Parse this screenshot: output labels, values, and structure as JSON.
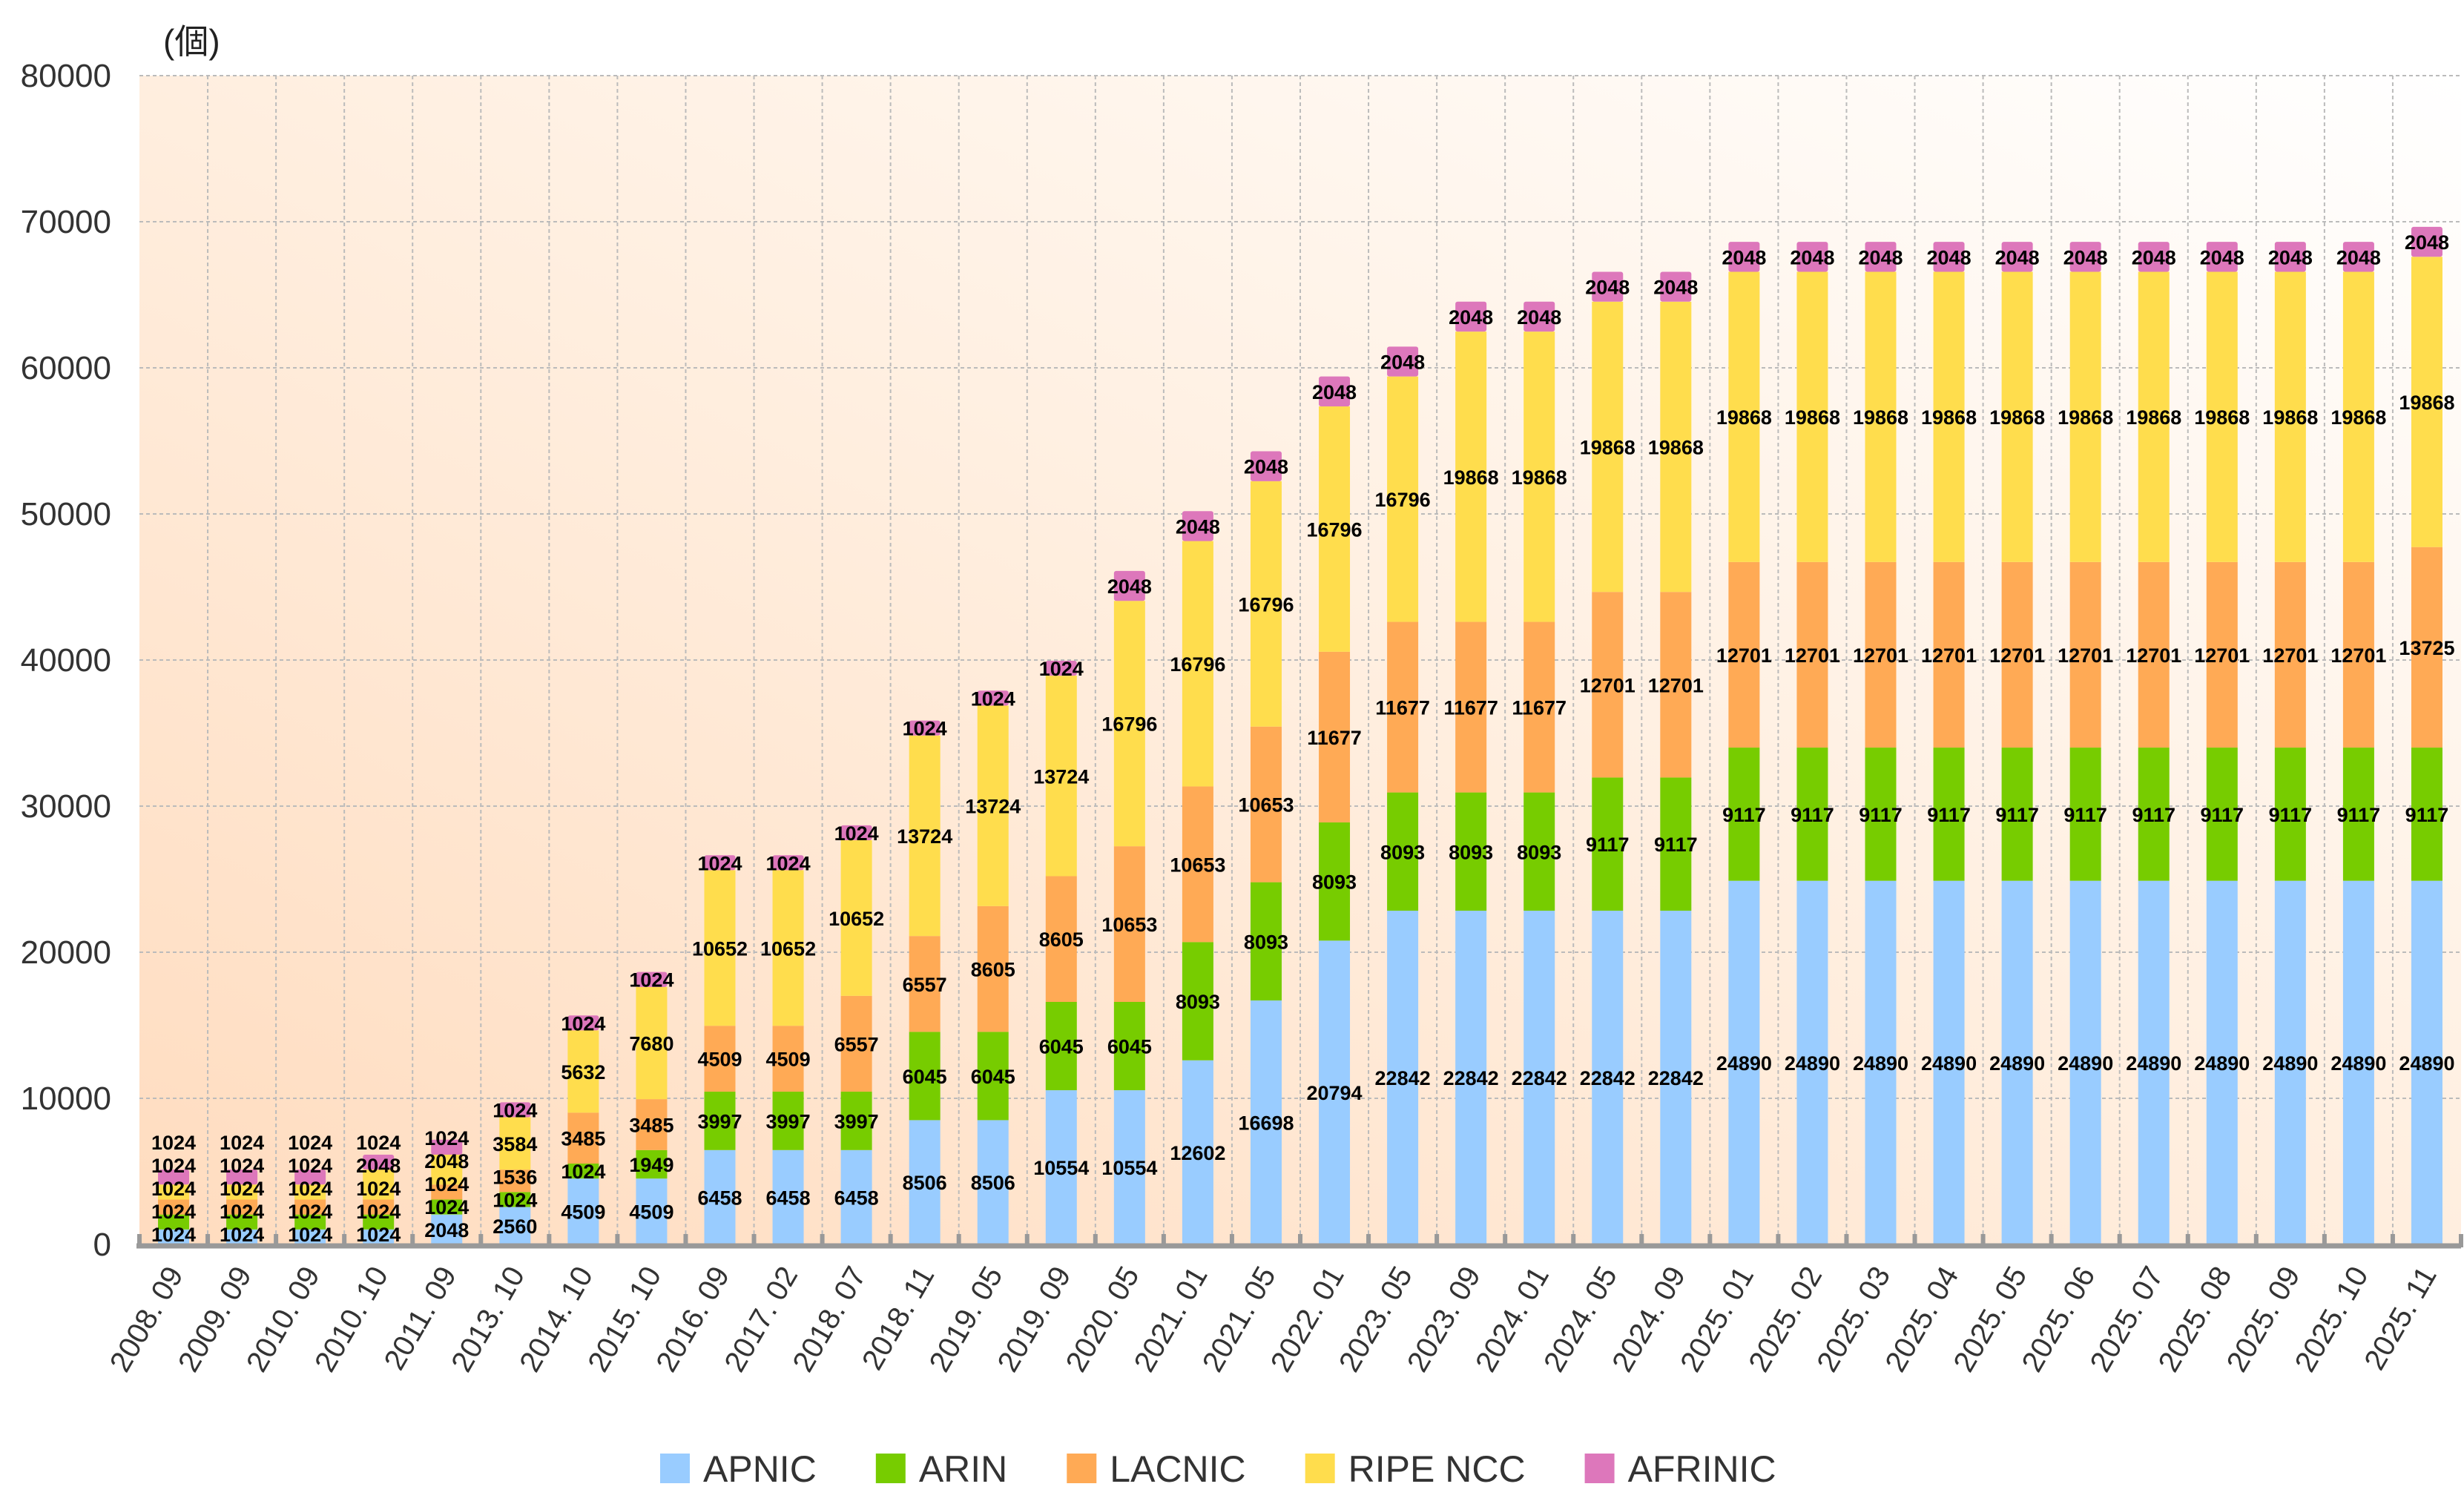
{
  "chart_data": {
    "type": "bar",
    "stacked": true,
    "title": "",
    "xlabel": "",
    "ylabel": "(個)",
    "ylim": [
      0,
      80000
    ],
    "yticks": [
      0,
      10000,
      20000,
      30000,
      40000,
      50000,
      60000,
      70000,
      80000
    ],
    "grid": true,
    "legend_position": "bottom",
    "categories": [
      "2008. 09",
      "2009. 09",
      "2010. 09",
      "2010. 10",
      "2011. 09",
      "2013. 10",
      "2014. 10",
      "2015. 10",
      "2016. 09",
      "2017. 02",
      "2018. 07",
      "2018. 11",
      "2019. 05",
      "2019. 09",
      "2020. 05",
      "2021. 01",
      "2021. 05",
      "2022. 01",
      "2023. 05",
      "2023. 09",
      "2024. 01",
      "2024. 05",
      "2024. 09",
      "2025. 01",
      "2025. 02",
      "2025. 03",
      "2025. 04",
      "2025. 05",
      "2025. 06",
      "2025. 07",
      "2025. 08",
      "2025. 09",
      "2025. 10",
      "2025. 11"
    ],
    "series": [
      {
        "name": "APNIC",
        "color": "#99ccff",
        "values": [
          1024,
          1024,
          1024,
          1024,
          2048,
          2560,
          4509,
          4509,
          6458,
          6458,
          6458,
          8506,
          8506,
          10554,
          10554,
          12602,
          16698,
          20794,
          22842,
          22842,
          22842,
          22842,
          22842,
          24890,
          24890,
          24890,
          24890,
          24890,
          24890,
          24890,
          24890,
          24890,
          24890,
          24890
        ]
      },
      {
        "name": "ARIN",
        "color": "#77cc00",
        "values": [
          1024,
          1024,
          1024,
          1024,
          1024,
          1024,
          1024,
          1949,
          3997,
          3997,
          3997,
          6045,
          6045,
          6045,
          6045,
          8093,
          8093,
          8093,
          8093,
          8093,
          8093,
          9117,
          9117,
          9117,
          9117,
          9117,
          9117,
          9117,
          9117,
          9117,
          9117,
          9117,
          9117,
          9117
        ]
      },
      {
        "name": "LACNIC",
        "color": "#ffaa55",
        "values": [
          1024,
          1024,
          1024,
          1024,
          1024,
          1536,
          3485,
          3485,
          4509,
          4509,
          6557,
          6557,
          8605,
          8605,
          10653,
          10653,
          10653,
          11677,
          11677,
          11677,
          11677,
          12701,
          12701,
          12701,
          12701,
          12701,
          12701,
          12701,
          12701,
          12701,
          12701,
          12701,
          12701,
          13725
        ]
      },
      {
        "name": "RIPE NCC",
        "color": "#ffdd4d",
        "values": [
          1024,
          1024,
          1024,
          2048,
          2048,
          3584,
          5632,
          7680,
          10652,
          10652,
          10652,
          13724,
          13724,
          13724,
          16796,
          16796,
          16796,
          16796,
          16796,
          19868,
          19868,
          19868,
          19868,
          19868,
          19868,
          19868,
          19868,
          19868,
          19868,
          19868,
          19868,
          19868,
          19868,
          19868
        ]
      },
      {
        "name": "AFRINIC",
        "color": "#dd77bb",
        "values": [
          1024,
          1024,
          1024,
          1024,
          1024,
          1024,
          1024,
          1024,
          1024,
          1024,
          1024,
          1024,
          1024,
          1024,
          2048,
          2048,
          2048,
          2048,
          2048,
          2048,
          2048,
          2048,
          2048,
          2048,
          2048,
          2048,
          2048,
          2048,
          2048,
          2048,
          2048,
          2048,
          2048,
          2048
        ]
      }
    ]
  }
}
